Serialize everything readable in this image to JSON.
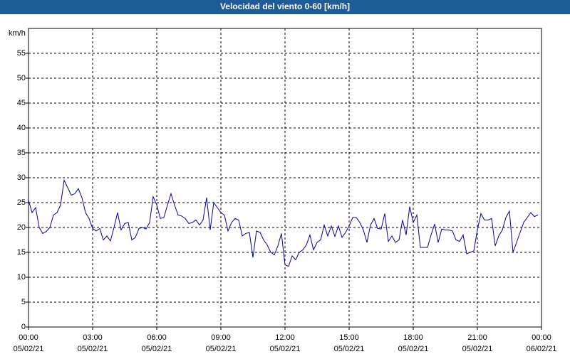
{
  "chart_data": {
    "type": "line",
    "title": "Velocidad del viento 0-60 [km/h]",
    "y_label": "km/h",
    "x": [
      0,
      10,
      20,
      30,
      40,
      50,
      60,
      70,
      80,
      90,
      100,
      110,
      120,
      130,
      140,
      150,
      160,
      170,
      180,
      190,
      200,
      210,
      220,
      230,
      240,
      250,
      260,
      270,
      280,
      290,
      300,
      310,
      320,
      330,
      340,
      350,
      360,
      370,
      380,
      390,
      400,
      410,
      420,
      430,
      440,
      450,
      460,
      470,
      480,
      490,
      500,
      510,
      520,
      530,
      540,
      550,
      560,
      570,
      580,
      590,
      600,
      610,
      620,
      630,
      640,
      650,
      660,
      670,
      680,
      690,
      700,
      710,
      720,
      730,
      740,
      750,
      760,
      770,
      780,
      790,
      800,
      810,
      820,
      830,
      840,
      850,
      860,
      870,
      880,
      890,
      900,
      910,
      920,
      930,
      940,
      950,
      960,
      970,
      980,
      990,
      1000,
      1010,
      1020,
      1030,
      1040,
      1050,
      1060,
      1070,
      1080,
      1090,
      1100,
      1110,
      1120,
      1130,
      1140,
      1150,
      1160,
      1170,
      1180,
      1190,
      1200,
      1210,
      1220,
      1230,
      1240,
      1250,
      1260,
      1270,
      1280,
      1290,
      1300,
      1310,
      1320,
      1330,
      1340,
      1350,
      1360,
      1370,
      1380,
      1390,
      1400,
      1410,
      1420,
      1430
    ],
    "series": [
      {
        "name": "Velocidad del viento",
        "color": "#0000a0",
        "values": [
          25.5,
          23,
          24,
          20,
          18.8,
          19.2,
          20,
          22.5,
          23,
          24.5,
          29.5,
          28,
          26.5,
          26.8,
          27.8,
          26,
          23,
          21.8,
          19.8,
          19.3,
          19.8,
          17.5,
          18.3,
          17.3,
          20,
          23,
          19.5,
          20.8,
          21,
          17.5,
          18,
          19.8,
          20,
          19.7,
          21,
          26.2,
          24.5,
          21.8,
          22,
          24.5,
          26.8,
          24.5,
          22.5,
          22.3,
          21.8,
          20.8,
          21,
          21.5,
          20.5,
          21.5,
          26,
          19.5,
          25,
          24,
          23,
          22.5,
          19.3,
          21,
          21.8,
          21.5,
          18.3,
          18.8,
          19,
          14,
          19.3,
          19,
          17.5,
          16.5,
          15,
          14.5,
          16.3,
          18.8,
          12.5,
          12.2,
          14.3,
          13.5,
          15,
          15.5,
          16.5,
          18.5,
          15.5,
          17,
          17.5,
          20.5,
          18.3,
          20.3,
          18.2,
          20.3,
          18,
          19,
          20.3,
          22,
          22,
          21,
          19.5,
          17,
          20.5,
          21.8,
          19.8,
          19.7,
          22.8,
          17.2,
          18.3,
          17,
          17.5,
          21.5,
          18.5,
          24.2,
          21,
          22.5,
          16,
          16,
          16,
          18.5,
          20.7,
          17,
          19.7,
          19.5,
          19.5,
          19.3,
          17.5,
          17.2,
          18.5,
          14.7,
          15,
          15.3,
          19.5,
          22.8,
          21.5,
          21.5,
          21.8,
          16.3,
          18.3,
          19.5,
          22,
          23.3,
          15,
          17,
          19,
          21,
          22,
          23,
          22.2,
          22.5
        ]
      }
    ],
    "xlim": [
      0,
      1440
    ],
    "ylim": [
      0,
      60
    ],
    "xticks": [
      {
        "value": 0,
        "label": "00:00"
      },
      {
        "value": 180,
        "label": "03:00"
      },
      {
        "value": 360,
        "label": "06:00"
      },
      {
        "value": 540,
        "label": "09:00"
      },
      {
        "value": 720,
        "label": "12:00"
      },
      {
        "value": 900,
        "label": "15:00"
      },
      {
        "value": 1080,
        "label": "18:00"
      },
      {
        "value": 1260,
        "label": "21:00"
      },
      {
        "value": 1440,
        "label": "00:00"
      }
    ],
    "xtick_dates": [
      "05/02/21",
      "05/02/21",
      "05/02/21",
      "05/02/21",
      "05/02/21",
      "05/02/21",
      "05/02/21",
      "05/02/21",
      "06/02/21"
    ],
    "yticks": [
      0,
      5,
      10,
      15,
      20,
      25,
      30,
      35,
      40,
      45,
      50,
      55
    ],
    "grid": true
  }
}
